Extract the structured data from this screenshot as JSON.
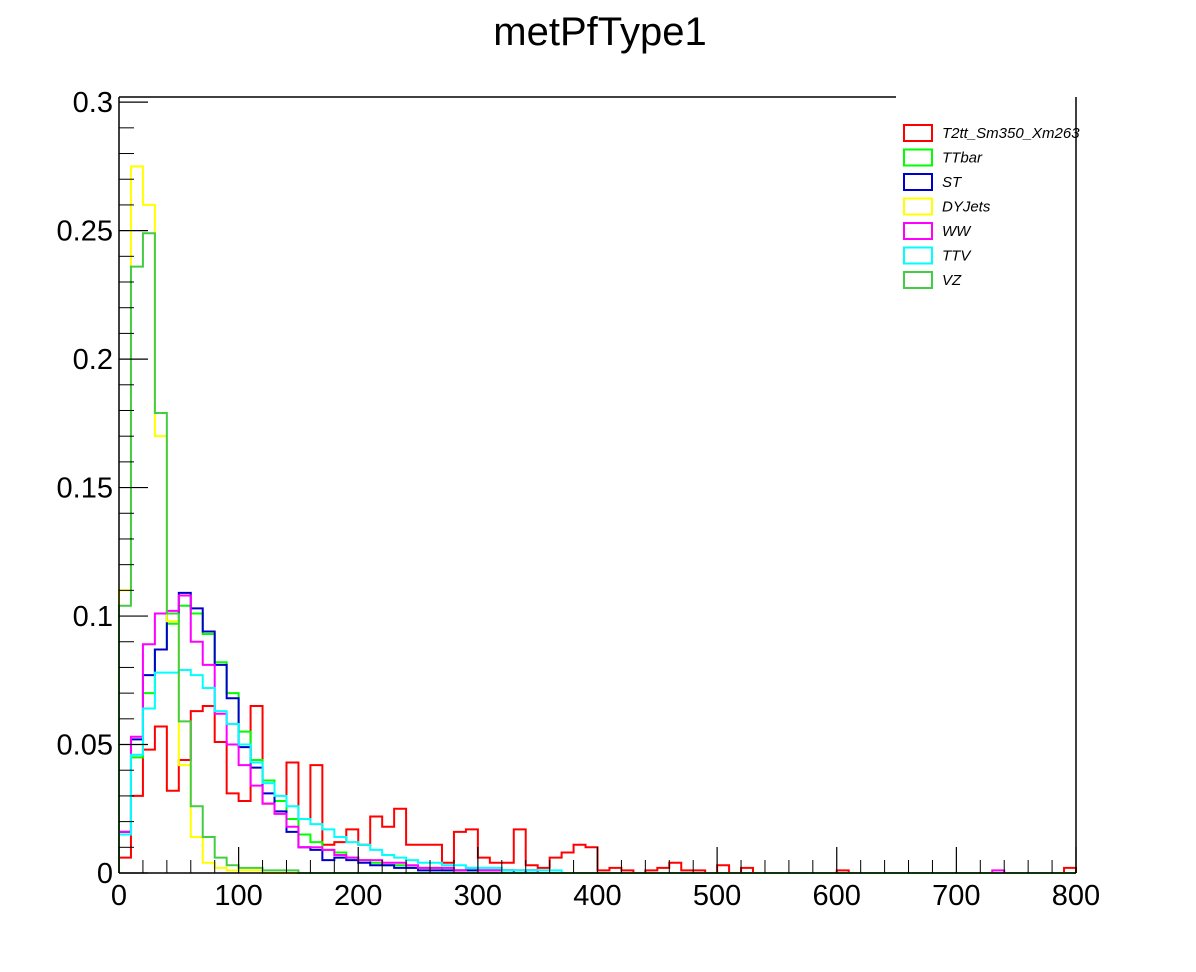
{
  "chart_data": {
    "type": "histogram",
    "title": "metPfType1",
    "xlabel": "",
    "ylabel": "",
    "xlim": [
      0,
      800
    ],
    "ylim": [
      0,
      0.302
    ],
    "bin_width": 10,
    "grid": false,
    "legend_placement": "top-right",
    "x_ticks": [
      "0",
      "100",
      "200",
      "300",
      "400",
      "500",
      "600",
      "700",
      "800"
    ],
    "y_ticks": [
      "0",
      "0.05",
      "0.1",
      "0.15",
      "0.2",
      "0.25",
      "0.3"
    ],
    "series": [
      {
        "name": "T2tt_Sm350_Xm263",
        "color": "#ff0000",
        "values": [
          0.006,
          0.03,
          0.048,
          0.057,
          0.032,
          0.044,
          0.063,
          0.065,
          0.051,
          0.031,
          0.028,
          0.065,
          0.027,
          0.028,
          0.043,
          0.021,
          0.042,
          0.011,
          0.012,
          0.017,
          0.011,
          0.022,
          0.018,
          0.025,
          0.011,
          0.011,
          0.011,
          0.004,
          0.016,
          0.017,
          0.006,
          0.004,
          0.004,
          0.017,
          0.003,
          0.002,
          0.006,
          0.008,
          0.011,
          0.01,
          0.001,
          0.002,
          0.001,
          0,
          0.001,
          0.002,
          0.004,
          0.001,
          0.001,
          0,
          0.003,
          0,
          0.002,
          0,
          0,
          0,
          0,
          0,
          0,
          0,
          0.001,
          0,
          0,
          0,
          0,
          0,
          0,
          0,
          0,
          0,
          0,
          0,
          0,
          0,
          0,
          0,
          0,
          0,
          0,
          0.002
        ]
      },
      {
        "name": "TTbar",
        "color": "#00ff00",
        "values": [
          0.016,
          0.045,
          0.07,
          0.087,
          0.097,
          0.104,
          0.101,
          0.093,
          0.082,
          0.07,
          0.055,
          0.044,
          0.036,
          0.028,
          0.021,
          0.015,
          0.012,
          0.009,
          0.008,
          0.006,
          0.005,
          0.004,
          0.003,
          0.003,
          0.002,
          0.002,
          0.002,
          0.001,
          0.001,
          0.001,
          0.001,
          0.001,
          0.001,
          0.001,
          0,
          0,
          0,
          0,
          0,
          0,
          0,
          0,
          0,
          0,
          0,
          0,
          0,
          0,
          0,
          0,
          0,
          0,
          0,
          0,
          0,
          0,
          0,
          0,
          0,
          0,
          0,
          0,
          0,
          0,
          0,
          0,
          0,
          0,
          0,
          0,
          0,
          0,
          0,
          0,
          0,
          0,
          0,
          0,
          0,
          0
        ]
      },
      {
        "name": "ST",
        "color": "#0000cc",
        "values": [
          0.016,
          0.052,
          0.077,
          0.087,
          0.101,
          0.109,
          0.103,
          0.094,
          0.081,
          0.068,
          0.049,
          0.041,
          0.031,
          0.024,
          0.016,
          0.01,
          0.009,
          0.005,
          0.006,
          0.005,
          0.004,
          0.003,
          0.003,
          0.002,
          0.002,
          0.001,
          0.001,
          0.001,
          0.001,
          0.001,
          0.001,
          0.001,
          0.001,
          0,
          0.001,
          0,
          0,
          0,
          0,
          0,
          0,
          0,
          0,
          0,
          0,
          0,
          0,
          0,
          0,
          0,
          0,
          0,
          0,
          0,
          0,
          0,
          0,
          0,
          0,
          0,
          0,
          0,
          0,
          0,
          0,
          0,
          0,
          0,
          0,
          0,
          0,
          0,
          0,
          0,
          0,
          0,
          0,
          0,
          0,
          0
        ]
      },
      {
        "name": "DYJets",
        "color": "#ffff00",
        "values": [
          0.11,
          0.275,
          0.26,
          0.17,
          0.098,
          0.042,
          0.014,
          0.004,
          0.002,
          0.001,
          0.001,
          0.001,
          0,
          0,
          0,
          0,
          0,
          0,
          0,
          0,
          0,
          0,
          0,
          0,
          0,
          0,
          0,
          0,
          0,
          0,
          0,
          0,
          0,
          0,
          0,
          0,
          0,
          0,
          0,
          0,
          0,
          0,
          0,
          0,
          0,
          0,
          0,
          0,
          0,
          0,
          0,
          0,
          0,
          0,
          0,
          0,
          0,
          0,
          0,
          0,
          0,
          0,
          0,
          0,
          0,
          0,
          0,
          0,
          0,
          0,
          0,
          0,
          0,
          0,
          0,
          0,
          0,
          0,
          0,
          0
        ]
      },
      {
        "name": "WW",
        "color": "#ff00ff",
        "values": [
          0.016,
          0.053,
          0.089,
          0.101,
          0.102,
          0.108,
          0.09,
          0.081,
          0.062,
          0.05,
          0.042,
          0.034,
          0.027,
          0.023,
          0.018,
          0.01,
          0.01,
          0.009,
          0.007,
          0.006,
          0.005,
          0.005,
          0.004,
          0.004,
          0.003,
          0.002,
          0.002,
          0.002,
          0.001,
          0.002,
          0.001,
          0.001,
          0.001,
          0.001,
          0.001,
          0,
          0,
          0,
          0,
          0,
          0,
          0,
          0,
          0,
          0,
          0,
          0,
          0,
          0,
          0,
          0,
          0,
          0,
          0,
          0,
          0,
          0,
          0,
          0,
          0,
          0,
          0,
          0,
          0,
          0,
          0,
          0,
          0,
          0,
          0,
          0,
          0,
          0,
          0.001,
          0,
          0,
          0,
          0,
          0,
          0
        ]
      },
      {
        "name": "TTV",
        "color": "#00ffff",
        "values": [
          0.015,
          0.046,
          0.064,
          0.078,
          0.078,
          0.079,
          0.077,
          0.072,
          0.063,
          0.058,
          0.05,
          0.043,
          0.035,
          0.03,
          0.026,
          0.021,
          0.019,
          0.017,
          0.014,
          0.012,
          0.011,
          0.009,
          0.007,
          0.006,
          0.005,
          0.004,
          0.004,
          0.003,
          0.003,
          0.002,
          0.002,
          0.002,
          0.001,
          0.001,
          0.001,
          0.001,
          0.001,
          0,
          0,
          0,
          0,
          0,
          0,
          0,
          0,
          0,
          0,
          0,
          0,
          0,
          0,
          0,
          0,
          0,
          0,
          0,
          0,
          0,
          0,
          0,
          0,
          0,
          0,
          0,
          0,
          0,
          0,
          0,
          0,
          0,
          0,
          0,
          0,
          0,
          0,
          0,
          0,
          0,
          0,
          0
        ]
      },
      {
        "name": "VZ",
        "color": "#44cc44",
        "values": [
          0.104,
          0.236,
          0.249,
          0.179,
          0.101,
          0.059,
          0.026,
          0.014,
          0.006,
          0.003,
          0.002,
          0.002,
          0.001,
          0.001,
          0.001,
          0,
          0,
          0,
          0,
          0,
          0,
          0,
          0,
          0,
          0,
          0,
          0,
          0,
          0,
          0,
          0,
          0,
          0,
          0,
          0,
          0,
          0,
          0,
          0,
          0,
          0,
          0,
          0,
          0,
          0,
          0,
          0,
          0,
          0,
          0,
          0,
          0,
          0,
          0,
          0,
          0,
          0,
          0,
          0,
          0,
          0,
          0,
          0,
          0,
          0,
          0,
          0,
          0,
          0,
          0,
          0,
          0,
          0,
          0,
          0,
          0,
          0,
          0,
          0,
          0
        ]
      }
    ]
  }
}
